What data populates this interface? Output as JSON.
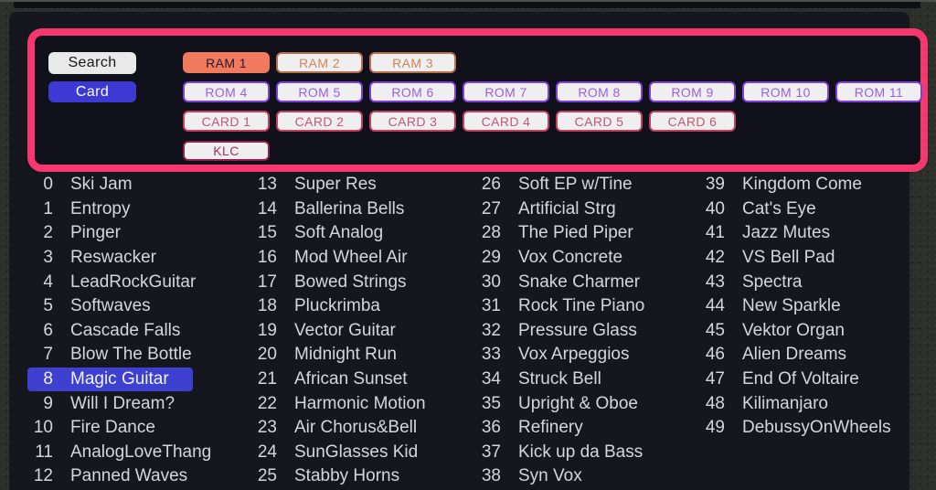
{
  "panel": {
    "search_button": "Search",
    "card_button": "Card",
    "ram_banks": [
      "RAM 1",
      "RAM 2",
      "RAM 3"
    ],
    "ram_selected_index": 0,
    "rom_banks": [
      "ROM 4",
      "ROM 5",
      "ROM 6",
      "ROM 7",
      "ROM 8",
      "ROM 9",
      "ROM 10",
      "ROM 11"
    ],
    "card_banks": [
      "CARD 1",
      "CARD 2",
      "CARD 3",
      "CARD 4",
      "CARD 5",
      "CARD 6"
    ],
    "klc_button": "KLC"
  },
  "patch_list": {
    "selected_number": 8,
    "columns": 4,
    "rows_per_column": 13,
    "items": [
      {
        "num": 0,
        "name": "Ski Jam"
      },
      {
        "num": 1,
        "name": "Entropy"
      },
      {
        "num": 2,
        "name": "Pinger"
      },
      {
        "num": 3,
        "name": "Reswacker"
      },
      {
        "num": 4,
        "name": "LeadRockGuitar"
      },
      {
        "num": 5,
        "name": "Softwaves"
      },
      {
        "num": 6,
        "name": "Cascade Falls"
      },
      {
        "num": 7,
        "name": "Blow The Bottle"
      },
      {
        "num": 8,
        "name": "Magic Guitar"
      },
      {
        "num": 9,
        "name": "Will I Dream?"
      },
      {
        "num": 10,
        "name": "Fire Dance"
      },
      {
        "num": 11,
        "name": "AnalogLoveThang"
      },
      {
        "num": 12,
        "name": "Panned Waves"
      },
      {
        "num": 13,
        "name": "Super Res"
      },
      {
        "num": 14,
        "name": "Ballerina Bells"
      },
      {
        "num": 15,
        "name": "Soft Analog"
      },
      {
        "num": 16,
        "name": "Mod Wheel Air"
      },
      {
        "num": 17,
        "name": "Bowed Strings"
      },
      {
        "num": 18,
        "name": "Pluckrimba"
      },
      {
        "num": 19,
        "name": "Vector Guitar"
      },
      {
        "num": 20,
        "name": "Midnight Run"
      },
      {
        "num": 21,
        "name": "African Sunset"
      },
      {
        "num": 22,
        "name": "Harmonic Motion"
      },
      {
        "num": 23,
        "name": "Air Chorus&Bell"
      },
      {
        "num": 24,
        "name": "SunGlasses Kid"
      },
      {
        "num": 25,
        "name": "Stabby Horns"
      },
      {
        "num": 26,
        "name": "Soft EP w/Tine"
      },
      {
        "num": 27,
        "name": "Artificial Strg"
      },
      {
        "num": 28,
        "name": "The Pied Piper"
      },
      {
        "num": 29,
        "name": "Vox Concrete"
      },
      {
        "num": 30,
        "name": "Snake Charmer"
      },
      {
        "num": 31,
        "name": "Rock Tine Piano"
      },
      {
        "num": 32,
        "name": "Pressure Glass"
      },
      {
        "num": 33,
        "name": "Vox Arpeggios"
      },
      {
        "num": 34,
        "name": "Struck Bell"
      },
      {
        "num": 35,
        "name": "Upright & Oboe"
      },
      {
        "num": 36,
        "name": "Refinery"
      },
      {
        "num": 37,
        "name": "Kick up da Bass"
      },
      {
        "num": 38,
        "name": "Syn Vox"
      },
      {
        "num": 39,
        "name": "Kingdom Come"
      },
      {
        "num": 40,
        "name": "Cat's Eye"
      },
      {
        "num": 41,
        "name": "Jazz Mutes"
      },
      {
        "num": 42,
        "name": "VS Bell Pad"
      },
      {
        "num": 43,
        "name": "Spectra"
      },
      {
        "num": 44,
        "name": "New Sparkle"
      },
      {
        "num": 45,
        "name": "Vektor Organ"
      },
      {
        "num": 46,
        "name": "Alien Dreams"
      },
      {
        "num": 47,
        "name": "End Of Voltaire"
      },
      {
        "num": 48,
        "name": "Kilimanjaro"
      },
      {
        "num": 49,
        "name": "DebussyOnWheels"
      }
    ]
  },
  "colors": {
    "accent_pink": "#f7386e",
    "selected_blue": "#3e40cf",
    "card_button_blue": "#3c3ad2",
    "ram_fill": "#f1795e",
    "ram_outline": "#b96e4d",
    "rom_outline": "#7e3fe0",
    "card_outline": "#c43f5e",
    "klc_outline": "#93204e"
  }
}
